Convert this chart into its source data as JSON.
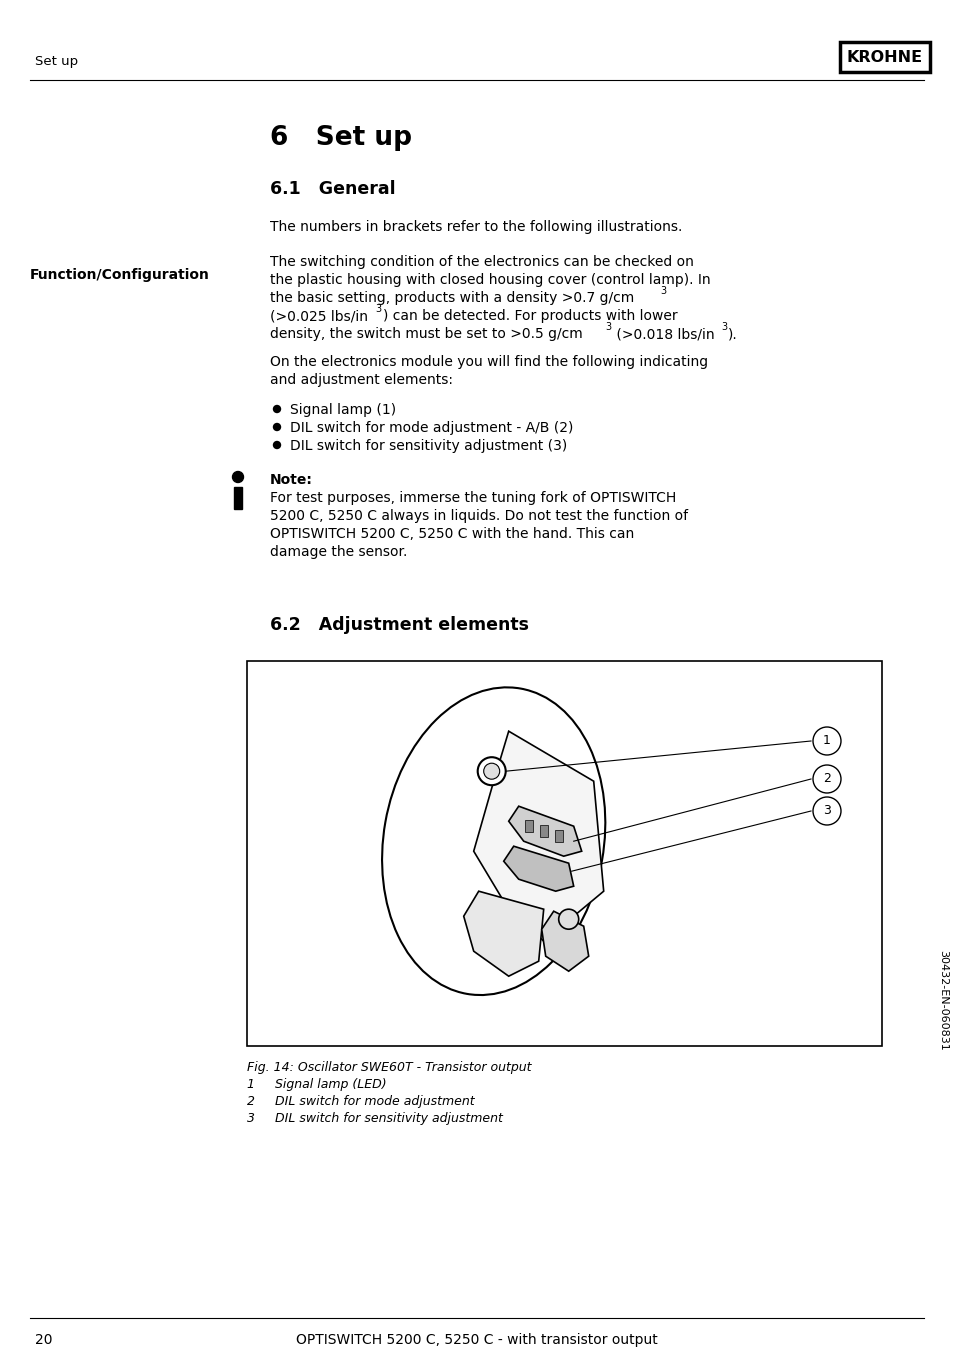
{
  "page_bg": "#ffffff",
  "header_text_left": "Set up",
  "header_logo": "KROHNE",
  "footer_page_num": "20",
  "footer_text": "OPTISWITCH 5200 C, 5250 C - with transistor output",
  "footer_sideways": "30432-EN-060831",
  "title": "6   Set up",
  "section_1_title": "6.1   General",
  "intro_text": "The numbers in brackets refer to the following illustrations.",
  "sidebar_label": "Function/Configuration",
  "section_2_title": "6.2   Adjustment elements",
  "fig_caption": "Fig. 14: Oscillator SWE60T - Transistor output",
  "fig_cap1": "1     Signal lamp (LED)",
  "fig_cap2": "2     DIL switch for mode adjustment",
  "fig_cap3": "3     DIL switch for sensitivity adjustment"
}
